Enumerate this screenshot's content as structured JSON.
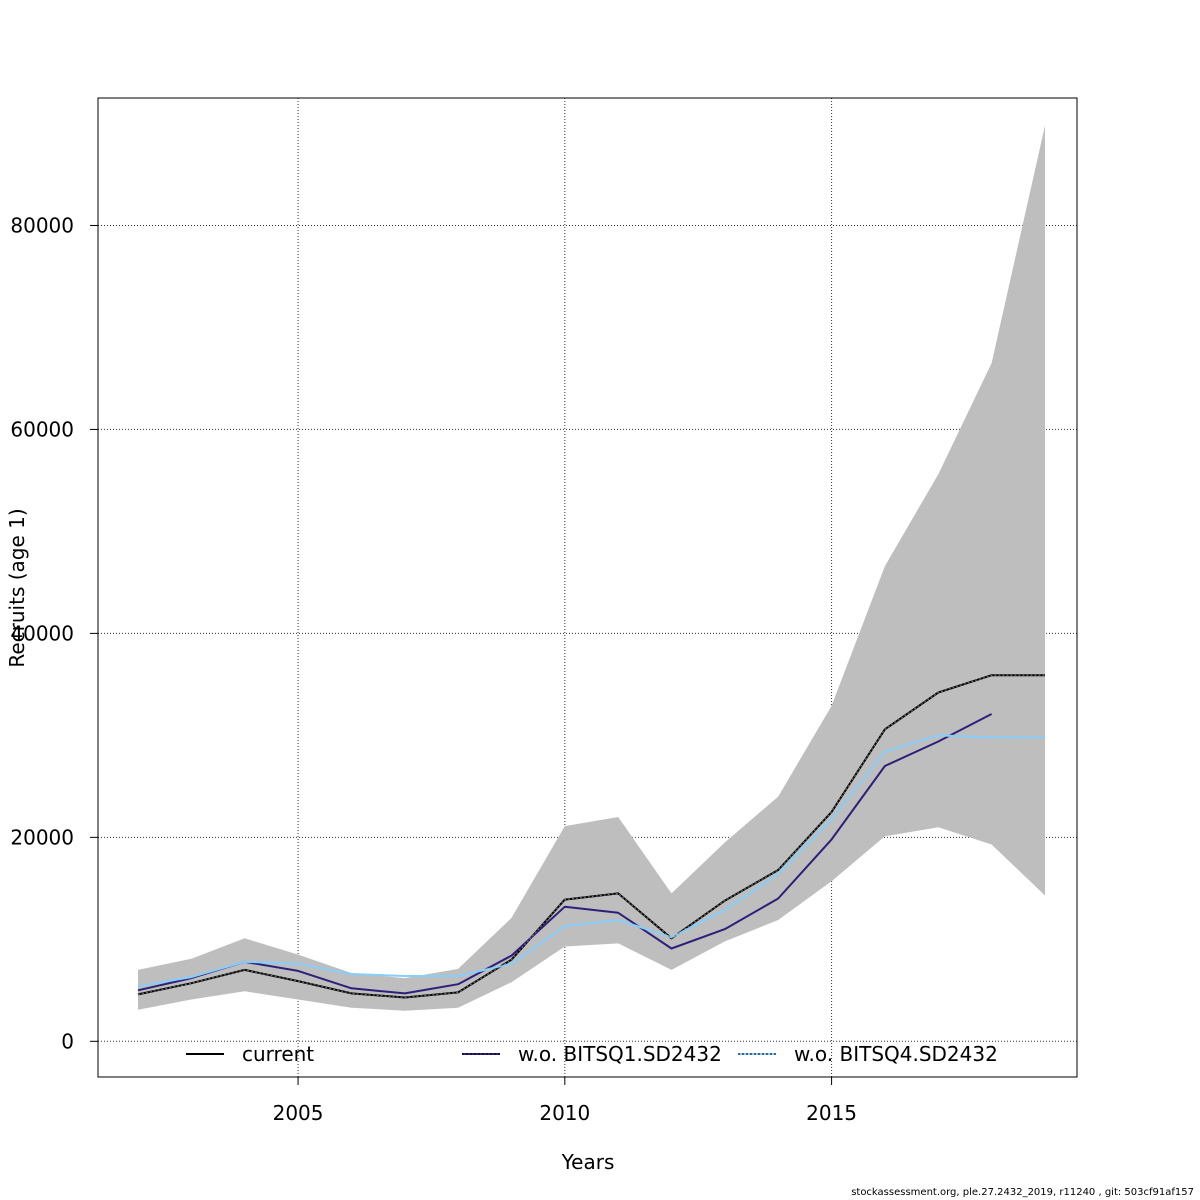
{
  "chart_data": {
    "type": "line",
    "title": "",
    "xlabel": "Years",
    "ylabel": "Recruits (age 1)",
    "xlim": [
      2001.25,
      2019.6
    ],
    "ylim": [
      -3500,
      92500
    ],
    "x_ticks": [
      2005,
      2010,
      2015
    ],
    "y_ticks": [
      0,
      20000,
      40000,
      60000,
      80000
    ],
    "grid": true,
    "legend_position": "bottom-inside",
    "x": [
      2002,
      2003,
      2004,
      2005,
      2006,
      2007,
      2008,
      2009,
      2010,
      2011,
      2012,
      2013,
      2014,
      2015,
      2016,
      2017,
      2018,
      2019
    ],
    "confidence_band": {
      "lower": [
        3100,
        4100,
        4900,
        4100,
        3300,
        3000,
        3300,
        5800,
        9300,
        9600,
        7000,
        9800,
        11900,
        15700,
        20100,
        21000,
        19300,
        14300
      ],
      "upper": [
        7000,
        8100,
        10100,
        8500,
        6700,
        6200,
        7100,
        12100,
        21100,
        22000,
        14500,
        19500,
        24000,
        32900,
        46600,
        55600,
        66500,
        89800
      ],
      "color": "#bebebe"
    },
    "series": [
      {
        "name": "current",
        "color": "#000000",
        "values": [
          4600,
          5700,
          7000,
          5900,
          4700,
          4300,
          4800,
          8000,
          13900,
          14500,
          10100,
          13800,
          16800,
          22500,
          30600,
          34200,
          35900,
          35900
        ]
      },
      {
        "name": "w.o. BITSQ1.SD2432",
        "color": "#2e1f7a",
        "values": [
          5000,
          6200,
          7800,
          6900,
          5200,
          4700,
          5600,
          8400,
          13200,
          12600,
          9100,
          11000,
          14000,
          19800,
          27000,
          29400,
          32100,
          null
        ]
      },
      {
        "name": "w.o. BITSQ4.SD2432",
        "color": "#87cefa",
        "values": [
          5400,
          6300,
          7800,
          7600,
          6600,
          6400,
          6400,
          7600,
          11300,
          11900,
          10200,
          12900,
          16400,
          21800,
          28400,
          30000,
          29800,
          29800
        ]
      }
    ],
    "footer": "stockassessment.org, ple.27.2432_2019, r11240 , git: 503cf91af157"
  }
}
